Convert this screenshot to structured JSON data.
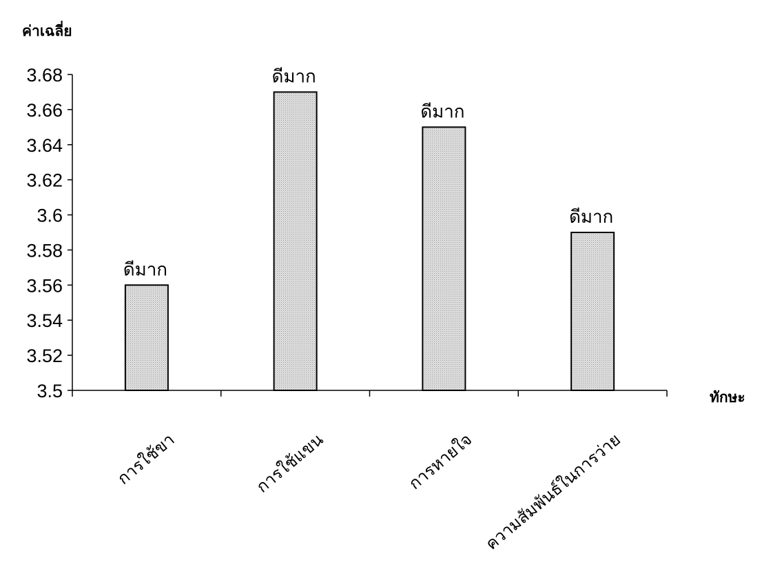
{
  "chart_data": {
    "type": "bar",
    "ylabel": "ค่าเฉลี่ย",
    "xlabel": "ทักษะ",
    "categories": [
      "การใช้ขา",
      "การใช้แขน",
      "การหายใจ",
      "ความสัมพันธ์ในการว่าย"
    ],
    "values": [
      3.56,
      3.67,
      3.65,
      3.59
    ],
    "data_labels": [
      "ดีมาก",
      "ดีมาก",
      "ดีมาก",
      "ดีมาก"
    ],
    "ylim": [
      3.5,
      3.68
    ],
    "yticks": [
      "3.5",
      "3.52",
      "3.54",
      "3.56",
      "3.58",
      "3.6",
      "3.62",
      "3.64",
      "3.66",
      "3.68"
    ],
    "grid": false,
    "legend": "none",
    "bar_color": "#d6d6d6",
    "bar_stroke": "#000000"
  }
}
